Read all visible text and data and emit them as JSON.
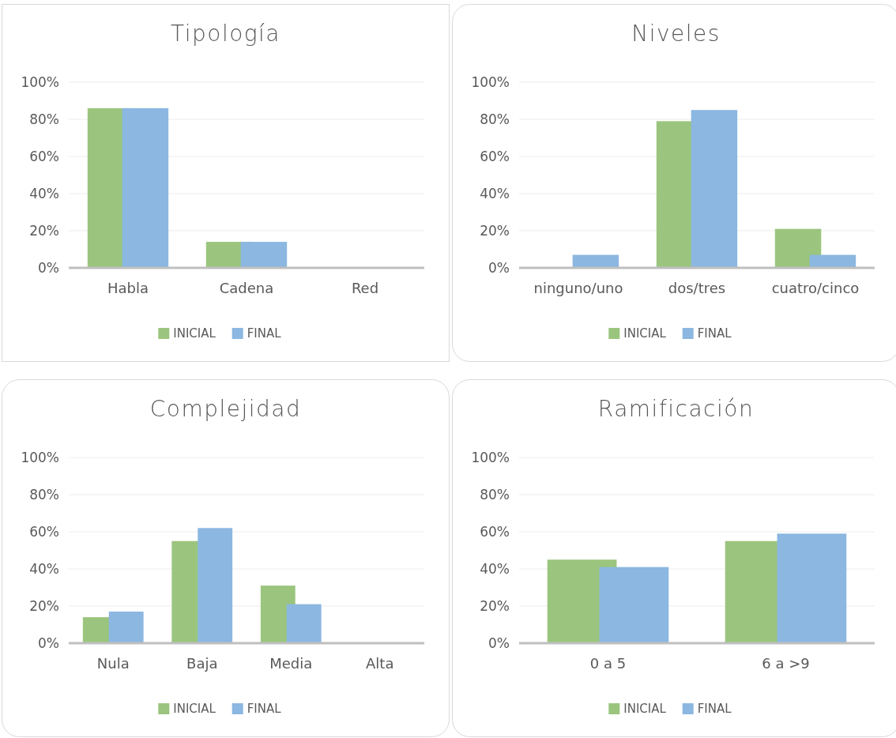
{
  "chart_data": [
    {
      "type": "bar",
      "title": "Tipología",
      "categories": [
        "Habla",
        "Cadena",
        "Red"
      ],
      "series": [
        {
          "name": "INICIAL",
          "color": "#9bc57e",
          "values": [
            86,
            14,
            0
          ]
        },
        {
          "name": "FINAL",
          "color": "#8bb7e1",
          "values": [
            86,
            14,
            0
          ]
        }
      ],
      "ylim": [
        0,
        100
      ],
      "yticks": [
        {
          "value": 0,
          "label": "0%"
        },
        {
          "value": 20,
          "label": "20%"
        },
        {
          "value": 40,
          "label": "40%"
        },
        {
          "value": 60,
          "label": "60%"
        },
        {
          "value": 80,
          "label": "80%"
        },
        {
          "value": 100,
          "label": "100%"
        }
      ],
      "grid": "y",
      "legend": "bottom"
    },
    {
      "type": "bar",
      "title": "Niveles",
      "categories": [
        "ninguno/uno",
        "dos/tres",
        "cuatro/cinco"
      ],
      "series": [
        {
          "name": "INICIAL",
          "color": "#9bc57e",
          "values": [
            0,
            79,
            21
          ]
        },
        {
          "name": "FINAL",
          "color": "#8bb7e1",
          "values": [
            7,
            85,
            7
          ]
        }
      ],
      "ylim": [
        0,
        100
      ],
      "yticks": [
        {
          "value": 0,
          "label": "0%"
        },
        {
          "value": 20,
          "label": "20%"
        },
        {
          "value": 40,
          "label": "40%"
        },
        {
          "value": 60,
          "label": "60%"
        },
        {
          "value": 80,
          "label": "80%"
        },
        {
          "value": 100,
          "label": "100%"
        }
      ],
      "grid": "y",
      "legend": "bottom"
    },
    {
      "type": "bar",
      "title": "Complejidad",
      "categories": [
        "Nula",
        "Baja",
        "Media",
        "Alta"
      ],
      "series": [
        {
          "name": "INICIAL",
          "color": "#9bc57e",
          "values": [
            14,
            55,
            31,
            0
          ]
        },
        {
          "name": "FINAL",
          "color": "#8bb7e1",
          "values": [
            17,
            62,
            21,
            0
          ]
        }
      ],
      "ylim": [
        0,
        100
      ],
      "yticks": [
        {
          "value": 0,
          "label": "0%"
        },
        {
          "value": 20,
          "label": "20%"
        },
        {
          "value": 40,
          "label": "40%"
        },
        {
          "value": 60,
          "label": "60%"
        },
        {
          "value": 80,
          "label": "80%"
        },
        {
          "value": 100,
          "label": "100%"
        }
      ],
      "grid": "y",
      "legend": "bottom"
    },
    {
      "type": "bar",
      "title": "Ramificación",
      "categories": [
        "0 a 5",
        "6 a >9"
      ],
      "series": [
        {
          "name": "INICIAL",
          "color": "#9bc57e",
          "values": [
            45,
            55
          ]
        },
        {
          "name": "FINAL",
          "color": "#8bb7e1",
          "values": [
            41,
            59
          ]
        }
      ],
      "ylim": [
        0,
        100
      ],
      "yticks": [
        {
          "value": 0,
          "label": "0%"
        },
        {
          "value": 20,
          "label": "20%"
        },
        {
          "value": 40,
          "label": "40%"
        },
        {
          "value": 60,
          "label": "60%"
        },
        {
          "value": 80,
          "label": "80%"
        },
        {
          "value": 100,
          "label": "100%"
        }
      ],
      "grid": "y",
      "legend": "bottom"
    }
  ]
}
